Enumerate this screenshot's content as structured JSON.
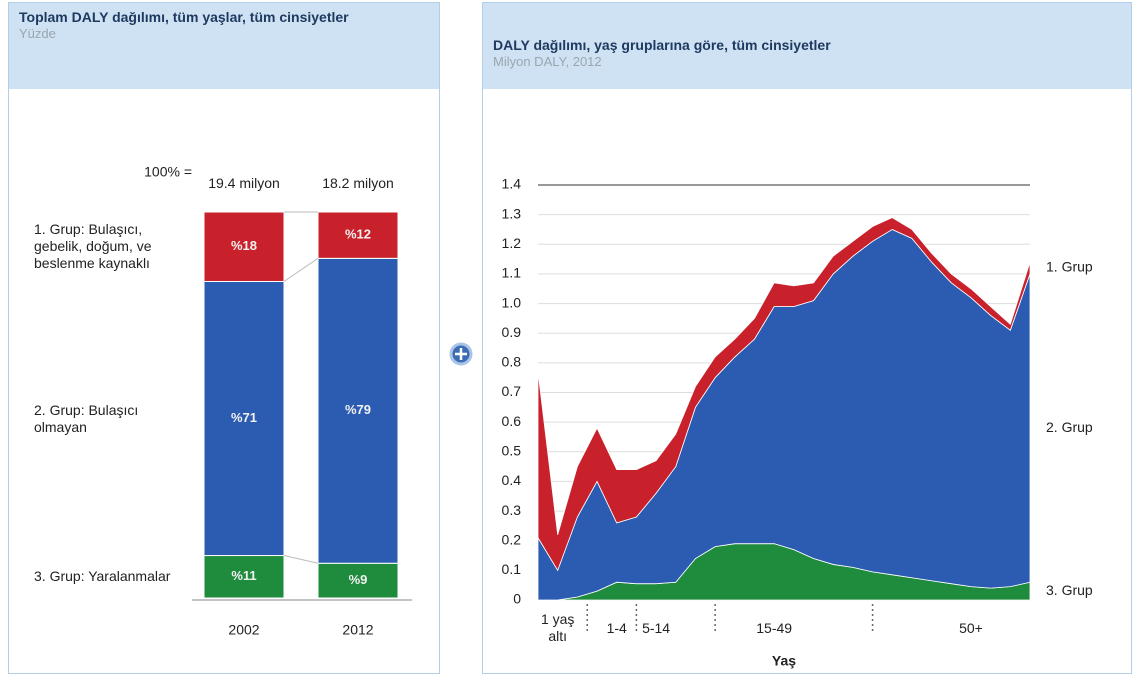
{
  "chart_data": [
    {
      "type": "stacked-bar-100",
      "title": "Toplam DALY dağılımı, tüm yaşlar, tüm cinsiyetler",
      "subtitle": "Yüzde",
      "total_caption": "100% =",
      "totals": [
        "19.4 milyon",
        "18.2 milyon"
      ],
      "categories": [
        "2002",
        "2012"
      ],
      "ylim": [
        0,
        100
      ],
      "series": [
        {
          "name": "1. Grup: Bulaşıcı, gebelik, doğum, ve beslenme kaynaklı",
          "color": "#c9212b",
          "values": [
            18,
            12
          ],
          "value_labels": [
            "%18",
            "%12"
          ]
        },
        {
          "name": "2. Grup: Bulaşıcı olmayan",
          "color": "#2b5cb2",
          "values": [
            71,
            79
          ],
          "value_labels": [
            "%71",
            "%79"
          ]
        },
        {
          "name": "3. Grup: Yaralanmalar",
          "color": "#1f8b3d",
          "values": [
            11,
            9
          ],
          "value_labels": [
            "%11",
            "%9"
          ]
        }
      ]
    },
    {
      "type": "stacked-area",
      "title": "DALY dağılımı, yaş gruplarına göre, tüm cinsiyetler",
      "subtitle": "Milyon DALY, 2012",
      "x_label": "Yaş",
      "categories": [
        null,
        "1 yaş altı",
        null,
        null,
        "1-4",
        null,
        "5-14",
        null,
        null,
        null,
        null,
        null,
        "15-49",
        null,
        null,
        null,
        null,
        null,
        null,
        null,
        null,
        null,
        "50+",
        null,
        null,
        null
      ],
      "ylim": [
        0,
        1.4
      ],
      "yticks": [
        0,
        0.1,
        0.2,
        0.3,
        0.4,
        0.5,
        0.6,
        0.7,
        0.8,
        0.9,
        {
          "value": 1,
          "label": "1.0"
        },
        1.1,
        1.2,
        1.3,
        1.4
      ],
      "grid": true,
      "series": [
        {
          "name": "1. Grup",
          "color": "#c9212b",
          "values": [
            0.56,
            0.12,
            0.17,
            0.18,
            0.18,
            0.16,
            0.11,
            0.11,
            0.07,
            0.07,
            0.06,
            0.07,
            0.08,
            0.07,
            0.06,
            0.06,
            0.05,
            0.05,
            0.04,
            0.03,
            0.03,
            0.03,
            0.03,
            0.03,
            0.02,
            0.04
          ]
        },
        {
          "name": "2. Grup",
          "color": "#2b5cb2",
          "values": [
            0.21,
            0.1,
            0.27,
            0.37,
            0.2,
            0.225,
            0.305,
            0.39,
            0.51,
            0.57,
            0.63,
            0.69,
            0.8,
            0.82,
            0.87,
            0.98,
            1.05,
            1.115,
            1.165,
            1.145,
            1.075,
            1.015,
            0.975,
            0.92,
            0.865,
            1.04
          ]
        },
        {
          "name": "3. Grup",
          "color": "#1f8b3d",
          "values": [
            0,
            0,
            0.01,
            0.03,
            0.06,
            0.055,
            0.055,
            0.06,
            0.14,
            0.18,
            0.19,
            0.19,
            0.19,
            0.17,
            0.14,
            0.12,
            0.11,
            0.095,
            0.085,
            0.075,
            0.065,
            0.055,
            0.045,
            0.04,
            0.045,
            0.06
          ]
        }
      ]
    }
  ]
}
